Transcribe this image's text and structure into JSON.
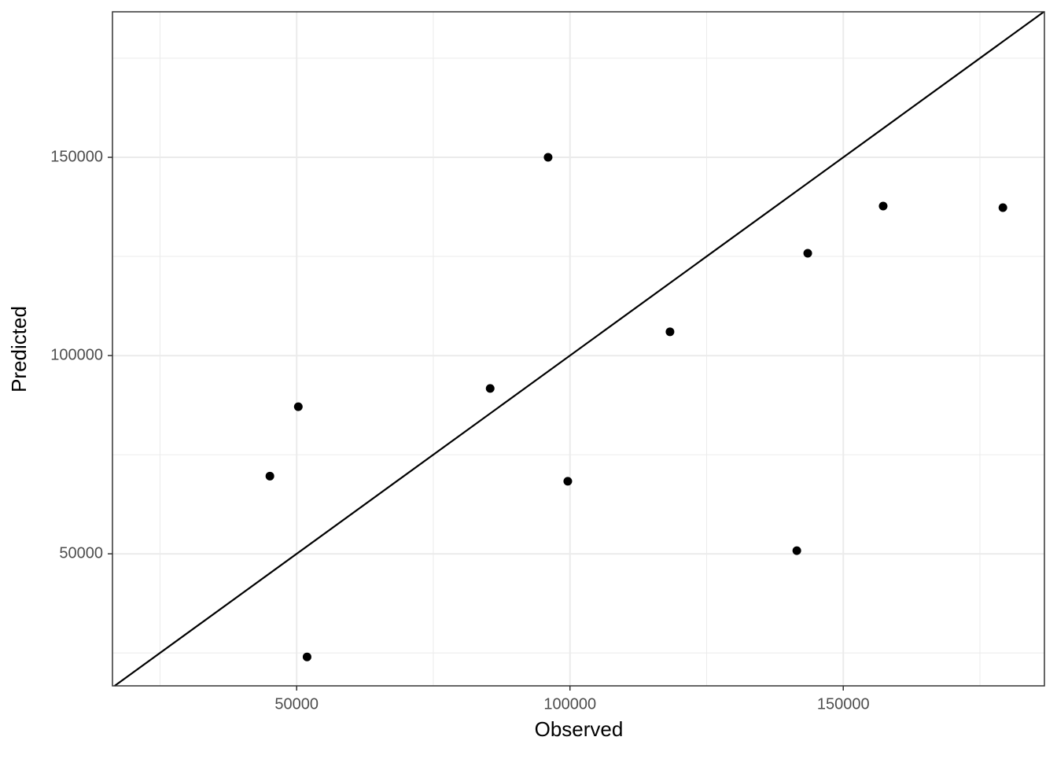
{
  "chart_data": {
    "type": "scatter",
    "x_label": "Observed",
    "y_label": "Predicted",
    "x": [
      45100,
      50300,
      51900,
      85400,
      96000,
      99600,
      118300,
      141500,
      143500,
      157300,
      179200
    ],
    "values": [
      69600,
      87100,
      24000,
      91700,
      150000,
      68300,
      106000,
      50800,
      125800,
      137700,
      137300
    ],
    "color": "#000000",
    "xlim": [
      16300,
      186800
    ],
    "ylim": [
      16700,
      186700
    ],
    "xticks": [
      50000,
      100000,
      150000
    ],
    "yticks": [
      50000,
      100000,
      150000
    ],
    "x_minor_grid": [
      25000,
      75000,
      125000,
      175000
    ],
    "y_minor_grid": [
      25000,
      75000,
      125000,
      175000
    ],
    "grid": true,
    "identity_line": true
  }
}
